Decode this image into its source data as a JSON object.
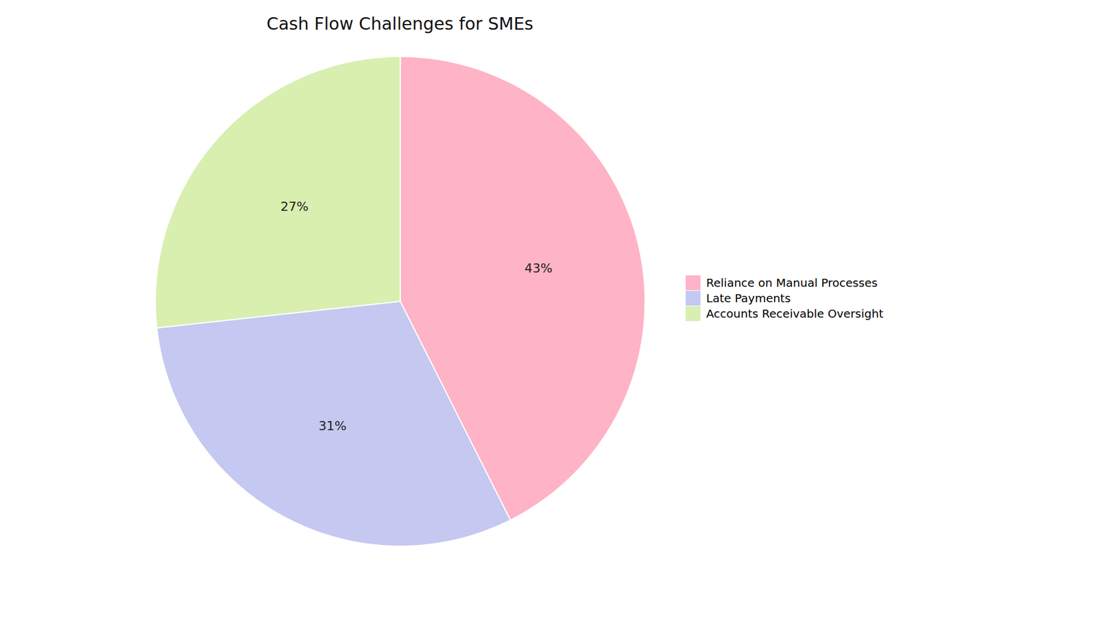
{
  "chart_data": {
    "type": "pie",
    "title": "Cash Flow Challenges for SMEs",
    "categories": [
      "Reliance on Manual Processes",
      "Late Payments",
      "Accounts Receivable Oversight"
    ],
    "values": [
      43,
      31,
      27
    ],
    "value_labels": [
      "43%",
      "31%",
      "27%"
    ],
    "colors": [
      "#FFB3C6",
      "#C5C8F0",
      "#D8EFB0"
    ],
    "data_labels": true,
    "legend": "right"
  }
}
